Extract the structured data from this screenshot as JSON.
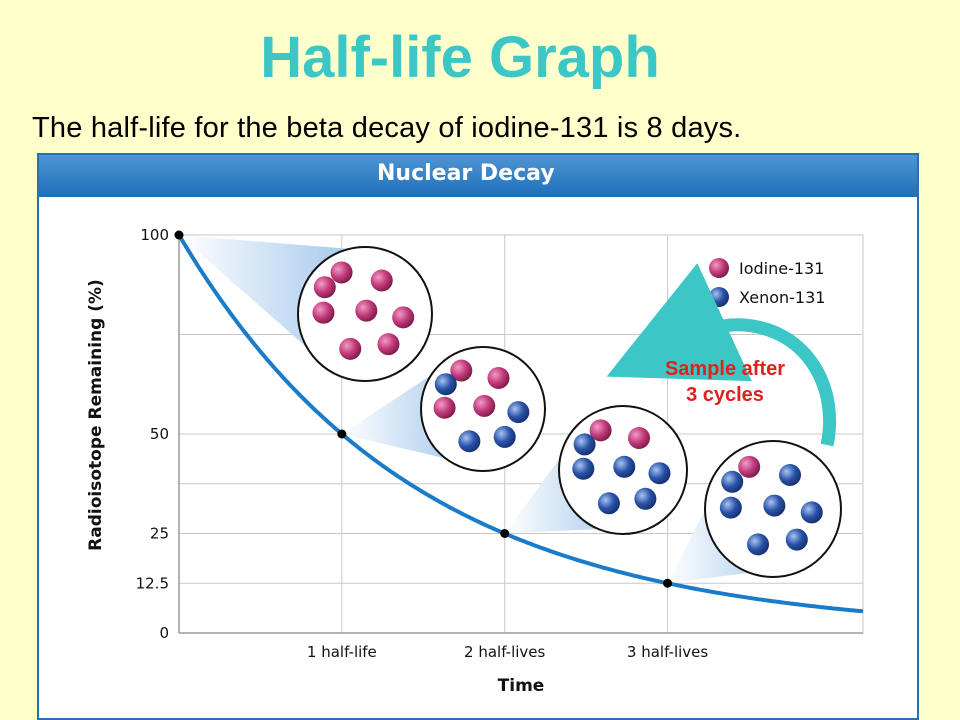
{
  "page": {
    "title": "Half-life Graph",
    "subtitle": "The half-life for the beta decay of iodine-131 is 8 days."
  },
  "colors": {
    "background": "#ffffcc",
    "title": "#3cc6c6",
    "header": "#2a6fb5",
    "curve": "#1a7cc9",
    "iodine": "#c13a79",
    "xenon": "#2b52a8",
    "annotation": "#e0201b",
    "arrow": "#3cc6c6"
  },
  "chart_data": {
    "type": "line",
    "title": "Nuclear Decay",
    "xlabel": "Time",
    "ylabel": "Radioisotope Remaining (%)",
    "x_categories": [
      "1 half-life",
      "2 half-lives",
      "3 half-lives"
    ],
    "y_ticks": [
      "100",
      "50",
      "25",
      "12.5",
      "0"
    ],
    "y_tick_values": [
      100,
      50,
      25,
      12.5,
      0
    ],
    "xlim": [
      0,
      4.2
    ],
    "ylim": [
      0,
      100
    ],
    "grid": true,
    "points": [
      {
        "x": 0,
        "y": 100
      },
      {
        "x": 1,
        "y": 50
      },
      {
        "x": 2,
        "y": 25
      },
      {
        "x": 3,
        "y": 12.5
      }
    ],
    "curve": "exponential decay, y = 100 * 0.5^x",
    "legend_position": "top-right",
    "legend": [
      {
        "name": "Iodine-131",
        "color": "#c13a79"
      },
      {
        "name": "Xenon-131",
        "color": "#2b52a8"
      }
    ],
    "samples": [
      {
        "iodine": 8,
        "xenon": 0
      },
      {
        "iodine": 4,
        "xenon": 4
      },
      {
        "iodine": 2,
        "xenon": 6
      },
      {
        "iodine": 1,
        "xenon": 7
      }
    ],
    "annotation": {
      "text_line1": "Sample after",
      "text_line2": "3 cycles"
    }
  }
}
